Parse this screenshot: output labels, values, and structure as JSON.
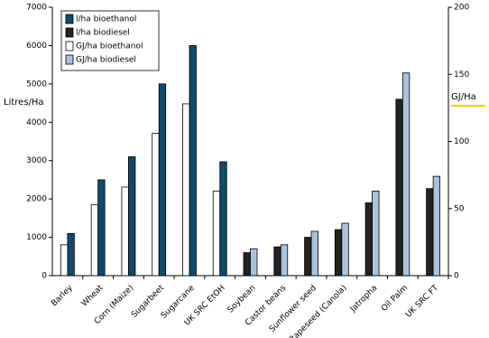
{
  "chart_data": {
    "type": "bar",
    "y_label": "Litres/Ha",
    "y2_label": "GJ/Ha",
    "categories": [
      "Barley",
      "Wheat",
      "Corn (Maize)",
      "Sugarbeet",
      "Sugarcane",
      "UK SRC EtOH",
      "Soybean",
      "Castor beans",
      "Sunflower seed",
      "Rapeseed (Canola)",
      "Jatropha",
      "Oil Palm",
      "UK SRC FT"
    ],
    "series": [
      {
        "name": "l/ha bioethanol",
        "color": "#0f4a6b",
        "values": [
          1100,
          2500,
          3100,
          5000,
          6000,
          2970,
          null,
          null,
          null,
          null,
          null,
          null,
          null
        ]
      },
      {
        "name": "l/ha biodiesel",
        "color": "#222222",
        "values": [
          null,
          null,
          null,
          null,
          null,
          null,
          600,
          750,
          1000,
          1200,
          1900,
          4600,
          2270
        ]
      },
      {
        "name": "GJ/ha bioethanol",
        "color": "#ffffff",
        "axis": "y2",
        "values": [
          23,
          53,
          66,
          106,
          128,
          63,
          null,
          null,
          null,
          null,
          null,
          null,
          null
        ]
      },
      {
        "name": "GJ/ha biodiesel",
        "color": "#a9c3dc",
        "axis": "y2",
        "values": [
          null,
          null,
          null,
          null,
          null,
          null,
          20,
          23,
          33,
          39,
          63,
          151,
          74
        ]
      }
    ],
    "ylim": [
      0,
      7000
    ],
    "yticks": [
      0,
      1000,
      2000,
      3000,
      4000,
      5000,
      6000,
      7000
    ],
    "y2lim": [
      0,
      200
    ],
    "y2ticks": [
      0,
      50,
      100,
      150,
      200
    ],
    "legend": "top-left"
  }
}
